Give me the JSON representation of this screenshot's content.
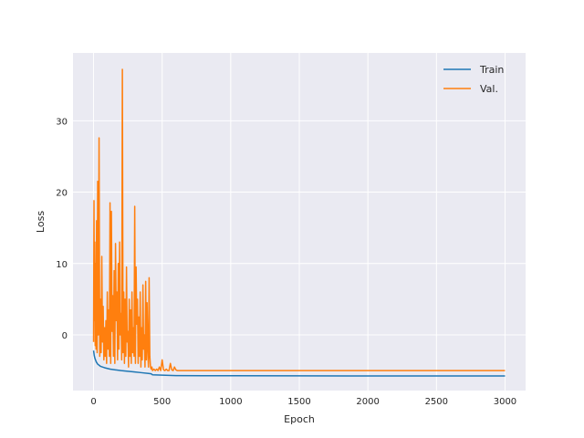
{
  "chart_data": {
    "type": "line",
    "title": "",
    "xlabel": "Epoch",
    "ylabel": "Loss",
    "xlim": [
      -150,
      3150
    ],
    "ylim": [
      -7.8,
      39.5
    ],
    "xticks": [
      0,
      500,
      1000,
      1500,
      2000,
      2500,
      3000
    ],
    "yticks": [
      0,
      10,
      20,
      30
    ],
    "grid": true,
    "background": "#eaeaf2",
    "legend_position": "top-right",
    "series": [
      {
        "name": "Train",
        "color": "#1f77b4",
        "x": [
          0,
          5,
          10,
          20,
          30,
          50,
          80,
          120,
          160,
          200,
          250,
          300,
          350,
          400,
          420,
          430,
          500,
          600,
          800,
          1000,
          1500,
          2000,
          2500,
          3000
        ],
        "y": [
          -2.2,
          -2.9,
          -3.3,
          -3.8,
          -4.1,
          -4.4,
          -4.6,
          -4.8,
          -4.9,
          -5.0,
          -5.1,
          -5.2,
          -5.3,
          -5.4,
          -5.45,
          -5.6,
          -5.65,
          -5.7,
          -5.72,
          -5.73,
          -5.74,
          -5.75,
          -5.75,
          -5.75
        ]
      },
      {
        "name": "Val.",
        "color": "#ff7f0e",
        "x": [
          0,
          3,
          6,
          9,
          12,
          15,
          18,
          22,
          26,
          30,
          35,
          40,
          45,
          50,
          55,
          60,
          65,
          70,
          75,
          80,
          85,
          90,
          95,
          100,
          105,
          110,
          115,
          120,
          125,
          130,
          135,
          140,
          145,
          150,
          155,
          160,
          165,
          170,
          175,
          180,
          185,
          190,
          195,
          200,
          205,
          210,
          215,
          220,
          225,
          230,
          235,
          240,
          245,
          250,
          255,
          260,
          265,
          270,
          275,
          280,
          285,
          290,
          295,
          300,
          305,
          310,
          315,
          320,
          325,
          330,
          335,
          340,
          345,
          350,
          355,
          360,
          365,
          370,
          375,
          380,
          385,
          390,
          395,
          400,
          405,
          410,
          415,
          420,
          425,
          430,
          440,
          450,
          460,
          470,
          480,
          490,
          500,
          510,
          520,
          530,
          540,
          550,
          560,
          570,
          580,
          590,
          600,
          610,
          620,
          700,
          1000,
          1500,
          2000,
          2500,
          3000
        ],
        "y": [
          -1.0,
          18.8,
          2.0,
          13.0,
          -1.5,
          10.0,
          -2.0,
          16.0,
          -2.5,
          21.5,
          0.0,
          27.6,
          -3.0,
          5.0,
          -2.5,
          11.0,
          -1.0,
          4.0,
          -3.5,
          1.0,
          -3.0,
          2.0,
          -4.0,
          6.0,
          -2.0,
          3.5,
          -3.0,
          18.5,
          -4.0,
          17.3,
          0.5,
          5.5,
          -3.0,
          9.0,
          -4.0,
          12.8,
          2.0,
          6.0,
          -3.5,
          10.0,
          -2.0,
          13.0,
          0.0,
          3.0,
          -3.5,
          37.2,
          -2.5,
          6.0,
          -4.0,
          5.0,
          -3.0,
          9.5,
          -1.0,
          0.5,
          -4.5,
          5.0,
          -3.0,
          3.5,
          -4.0,
          6.0,
          -2.5,
          1.0,
          -3.0,
          18.0,
          -4.0,
          9.5,
          1.5,
          5.0,
          -4.0,
          2.5,
          -3.0,
          6.0,
          -4.5,
          1.0,
          -3.5,
          7.0,
          -2.0,
          0.0,
          -4.5,
          7.5,
          -3.5,
          4.5,
          -2.0,
          -4.5,
          8.0,
          -3.0,
          -4.5,
          -4.8,
          -4.5,
          -5.0,
          -4.8,
          -5.0,
          -4.8,
          -5.0,
          -4.5,
          -5.0,
          -3.5,
          -4.9,
          -5.0,
          -4.8,
          -5.0,
          -5.0,
          -4.0,
          -4.9,
          -5.0,
          -4.5,
          -4.9,
          -5.0,
          -5.0,
          -5.0,
          -5.0,
          -5.0,
          -5.0,
          -5.0,
          -5.0
        ]
      }
    ]
  }
}
